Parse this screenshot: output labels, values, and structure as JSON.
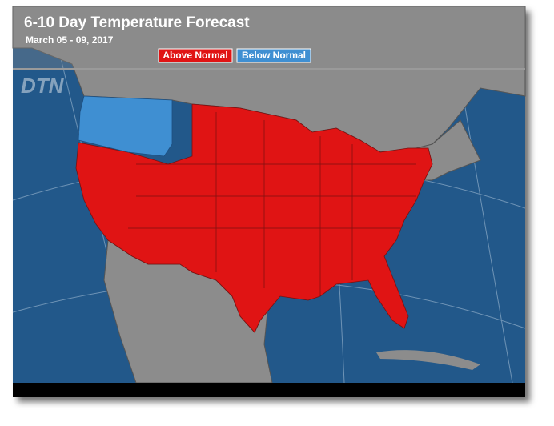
{
  "header": {
    "title": "6-10 Day Temperature Forecast",
    "subtitle": "March 05 - 09, 2017",
    "logo": "DTN"
  },
  "legend": [
    {
      "label": "Above Normal",
      "color": "#e01414"
    },
    {
      "label": "Below Normal",
      "color": "#3f8fd2"
    }
  ]
}
